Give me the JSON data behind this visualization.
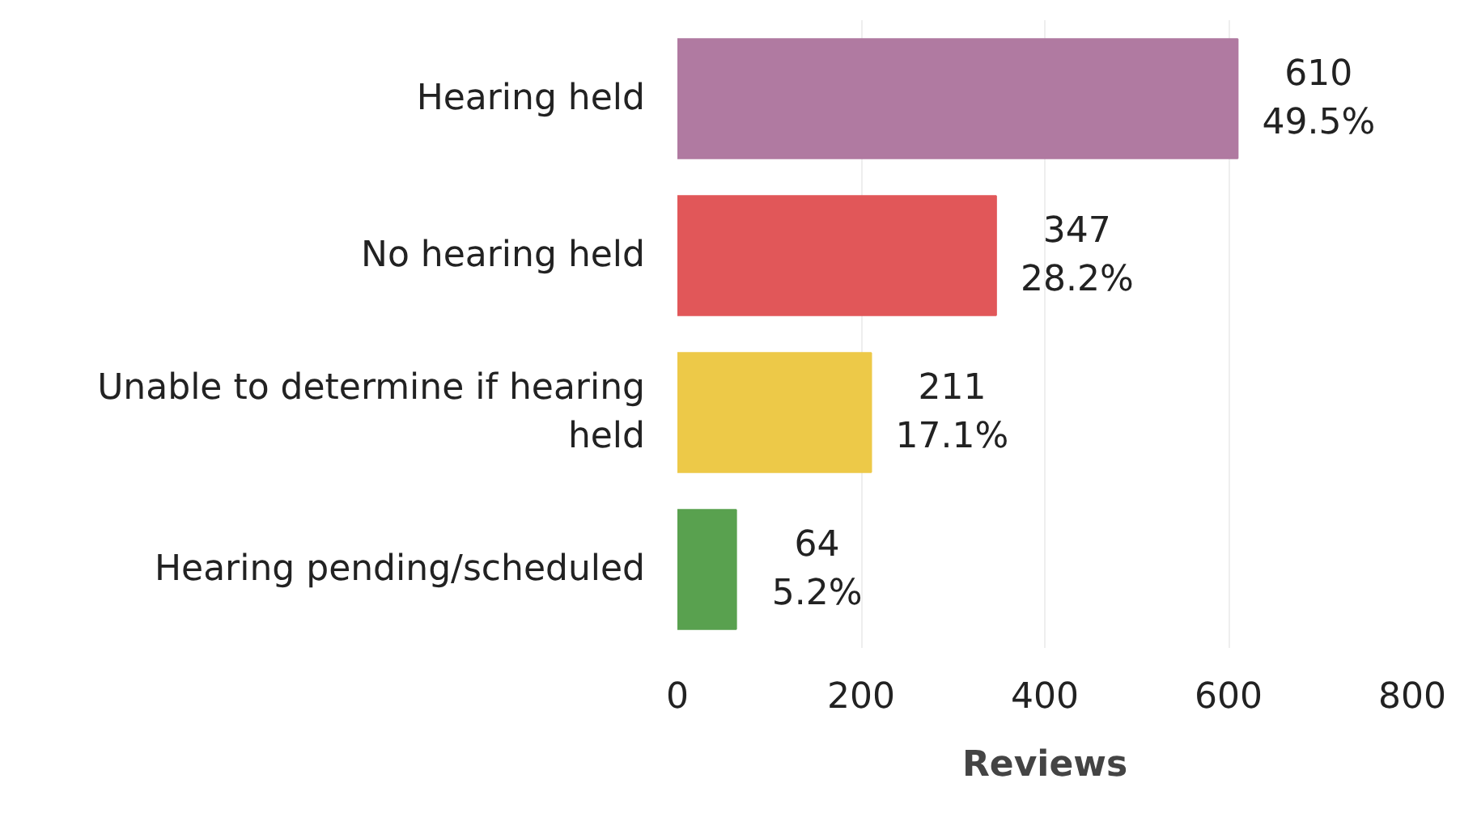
{
  "chart_data": {
    "type": "bar",
    "orientation": "horizontal",
    "xlabel": "Reviews",
    "categories": [
      "Hearing held",
      "No hearing held",
      "Unable to determine if hearing held",
      "Hearing pending/scheduled"
    ],
    "values": [
      610,
      347,
      211,
      64
    ],
    "colors": [
      "#b07aa1",
      "#e15759",
      "#edc948",
      "#59a14f"
    ],
    "value_labels": [
      "610\n49.5%",
      "347\n28.2%",
      "211\n17.1%",
      "64\n5.2%"
    ],
    "xlim": [
      0,
      800
    ],
    "xticks": [
      0,
      200,
      400,
      600,
      800
    ],
    "grid": "x"
  }
}
